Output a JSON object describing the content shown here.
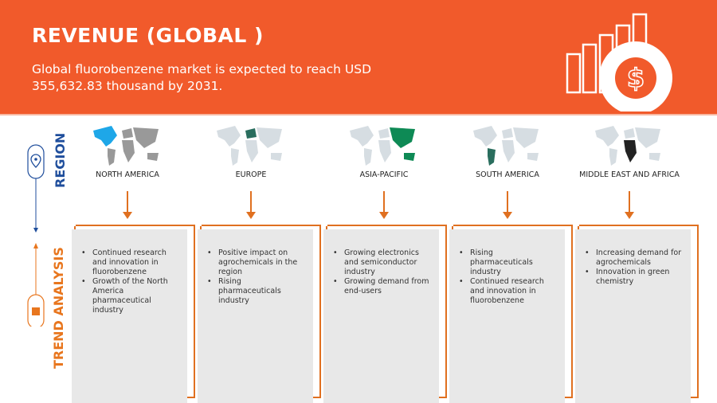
{
  "header": {
    "title": "REVENUE (GLOBAL )",
    "subtitle": "Global fluorobenzene market is expected to reach USD 355,632.83 thousand by 2031.",
    "icon": "revenue-growth-dollar-icon"
  },
  "side": {
    "region_label": "REGION",
    "trend_label": "TREND ANALYSIS",
    "region_color": "#1F4E9C",
    "trend_color": "#E8761E"
  },
  "colors": {
    "header": "#F15A2B",
    "accent": "#E07020",
    "box": "#E8E8E8"
  },
  "regions": [
    {
      "name": "NORTH AMERICA",
      "highlight": "#1EA7E8",
      "trends": [
        "Continued research and innovation in fluorobenzene",
        "Growth of the North America pharmaceutical industry"
      ]
    },
    {
      "name": "EUROPE",
      "highlight": "#2A6E5E",
      "trends": [
        "Positive impact on agrochemicals in the region",
        "Rising pharmaceuticals industry"
      ]
    },
    {
      "name": "ASIA-PACIFIC",
      "highlight": "#0E8A55",
      "trends": [
        "Growing electronics and semiconductor industry",
        "Growing demand from end-users"
      ]
    },
    {
      "name": "SOUTH AMERICA",
      "highlight": "#2A6E5E",
      "trends": [
        "Rising pharmaceuticals industry",
        "Continued research and innovation in fluorobenzene"
      ]
    },
    {
      "name": "MIDDLE EAST AND AFRICA",
      "highlight": "#222222",
      "trends": [
        "Increasing demand for agrochemicals",
        "Innovation in green chemistry"
      ]
    }
  ]
}
